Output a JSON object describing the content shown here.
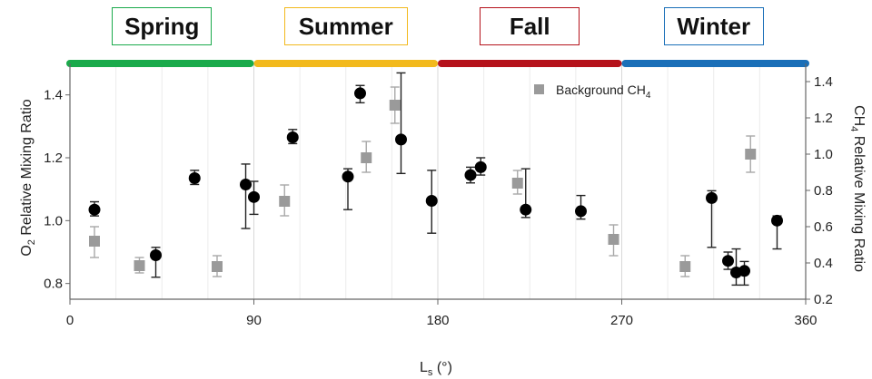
{
  "chart_data": {
    "type": "scatter",
    "title": "",
    "xlabel": "L",
    "xlabel_sub": "s",
    "xlabel_unit": " (°)",
    "ylabel_left_pre": "O",
    "ylabel_left_sub": "2",
    "ylabel_left_post": " Relative Mixing Ratio",
    "ylabel_right_pre": "CH",
    "ylabel_right_sub": "4",
    "ylabel_right_post": " Relative Mixing Ratio",
    "xlim": [
      0,
      360
    ],
    "ylim_left": [
      0.75,
      1.5
    ],
    "ylim_right": [
      0.2,
      1.5
    ],
    "x_ticks": [
      0,
      90,
      180,
      270,
      360
    ],
    "y_left_ticks": [
      "0.8",
      "1.0",
      "1.2",
      "1.4"
    ],
    "y_right_ticks": [
      "0.2",
      "0.4",
      "0.6",
      "0.8",
      "1.0",
      "1.2",
      "1.4"
    ],
    "grid": true,
    "legend": {
      "label_pre": "Background CH",
      "label_sub": "4",
      "placement": "top-center"
    },
    "seasons": [
      {
        "name": "Spring",
        "range": [
          0,
          90
        ],
        "color": "#1aaa4b"
      },
      {
        "name": "Summer",
        "range": [
          90,
          180
        ],
        "color": "#f2b91c"
      },
      {
        "name": "Fall",
        "range": [
          180,
          270
        ],
        "color": "#b5121b"
      },
      {
        "name": "Winter",
        "range": [
          270,
          360
        ],
        "color": "#1a6fb8"
      }
    ],
    "series": [
      {
        "axis": "left",
        "marker": "circle",
        "color": "#000000",
        "points": [
          {
            "x": 12,
            "y": 1.035,
            "lo": 1.015,
            "hi": 1.06
          },
          {
            "x": 42,
            "y": 0.89,
            "lo": 0.82,
            "hi": 0.915
          },
          {
            "x": 61,
            "y": 1.135,
            "lo": 1.115,
            "hi": 1.16
          },
          {
            "x": 86,
            "y": 1.115,
            "lo": 0.975,
            "hi": 1.18
          },
          {
            "x": 90,
            "y": 1.075,
            "lo": 1.02,
            "hi": 1.125
          },
          {
            "x": 109,
            "y": 1.265,
            "lo": 1.245,
            "hi": 1.29
          },
          {
            "x": 136,
            "y": 1.14,
            "lo": 1.035,
            "hi": 1.165
          },
          {
            "x": 142,
            "y": 1.405,
            "lo": 1.375,
            "hi": 1.43
          },
          {
            "x": 162,
            "y": 1.258,
            "lo": 1.15,
            "hi": 1.47
          },
          {
            "x": 177,
            "y": 1.063,
            "lo": 0.96,
            "hi": 1.16
          },
          {
            "x": 196,
            "y": 1.145,
            "lo": 1.12,
            "hi": 1.17
          },
          {
            "x": 201,
            "y": 1.17,
            "lo": 1.145,
            "hi": 1.2
          },
          {
            "x": 223,
            "y": 1.035,
            "lo": 1.01,
            "hi": 1.165
          },
          {
            "x": 250,
            "y": 1.03,
            "lo": 1.005,
            "hi": 1.08
          },
          {
            "x": 314,
            "y": 1.072,
            "lo": 0.915,
            "hi": 1.095
          },
          {
            "x": 322,
            "y": 0.872,
            "lo": 0.845,
            "hi": 0.9
          },
          {
            "x": 326,
            "y": 0.835,
            "lo": 0.795,
            "hi": 0.91
          },
          {
            "x": 330,
            "y": 0.84,
            "lo": 0.795,
            "hi": 0.87
          },
          {
            "x": 346,
            "y": 1.0,
            "lo": 0.91,
            "hi": 1.015
          }
        ]
      },
      {
        "axis": "right",
        "marker": "square",
        "color": "#9a9a9a",
        "points": [
          {
            "x": 12,
            "y": 0.52,
            "lo": 0.43,
            "hi": 0.6
          },
          {
            "x": 34,
            "y": 0.385,
            "lo": 0.345,
            "hi": 0.43
          },
          {
            "x": 72,
            "y": 0.38,
            "lo": 0.325,
            "hi": 0.44
          },
          {
            "x": 105,
            "y": 0.74,
            "lo": 0.66,
            "hi": 0.83
          },
          {
            "x": 145,
            "y": 0.98,
            "lo": 0.9,
            "hi": 1.07
          },
          {
            "x": 159,
            "y": 1.27,
            "lo": 1.17,
            "hi": 1.37
          },
          {
            "x": 219,
            "y": 0.84,
            "lo": 0.78,
            "hi": 0.91
          },
          {
            "x": 266,
            "y": 0.53,
            "lo": 0.44,
            "hi": 0.61
          },
          {
            "x": 301,
            "y": 0.38,
            "lo": 0.325,
            "hi": 0.44
          },
          {
            "x": 333,
            "y": 1.0,
            "lo": 0.9,
            "hi": 1.1
          }
        ]
      }
    ]
  }
}
